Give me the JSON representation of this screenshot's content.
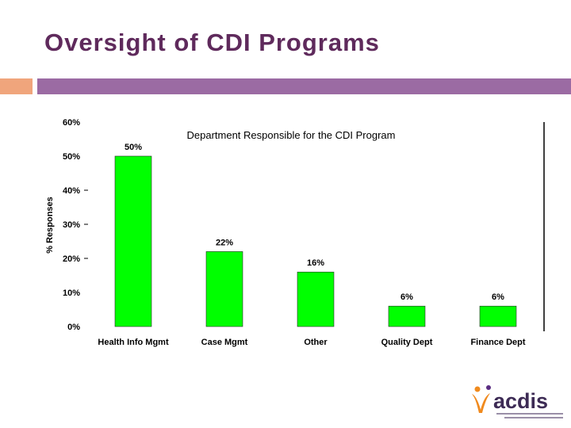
{
  "slide": {
    "title": "Oversight of CDI Programs",
    "accent_orange": "#f0a57c",
    "accent_purple": "#9b6ba3",
    "title_color": "#5f2a5c"
  },
  "chart_data": {
    "type": "bar",
    "title": "Department Responsible for the CDI Program",
    "xlabel": "",
    "ylabel": "% Responses",
    "categories": [
      "Health Info Mgmt",
      "Case Mgmt",
      "Other",
      "Quality Dept",
      "Finance Dept"
    ],
    "values": [
      50,
      22,
      16,
      6,
      6
    ],
    "data_labels": [
      "50%",
      "22%",
      "16%",
      "6%",
      "6%"
    ],
    "ylim": [
      0,
      60
    ],
    "y_ticks": [
      0,
      10,
      20,
      30,
      40,
      50,
      60
    ],
    "y_tick_labels": [
      "0%",
      "10%",
      "20%",
      "30%",
      "40%",
      "50%",
      "60%"
    ],
    "bar_color": "#00ff00",
    "grid": false,
    "legend": "none"
  },
  "logo": {
    "name": "acdis",
    "tagline": "Association of Clinical Documentation Improvement Specialists",
    "colors": {
      "orange": "#f08a1e",
      "purple": "#5b2d82",
      "text": "#3d2b55"
    }
  }
}
